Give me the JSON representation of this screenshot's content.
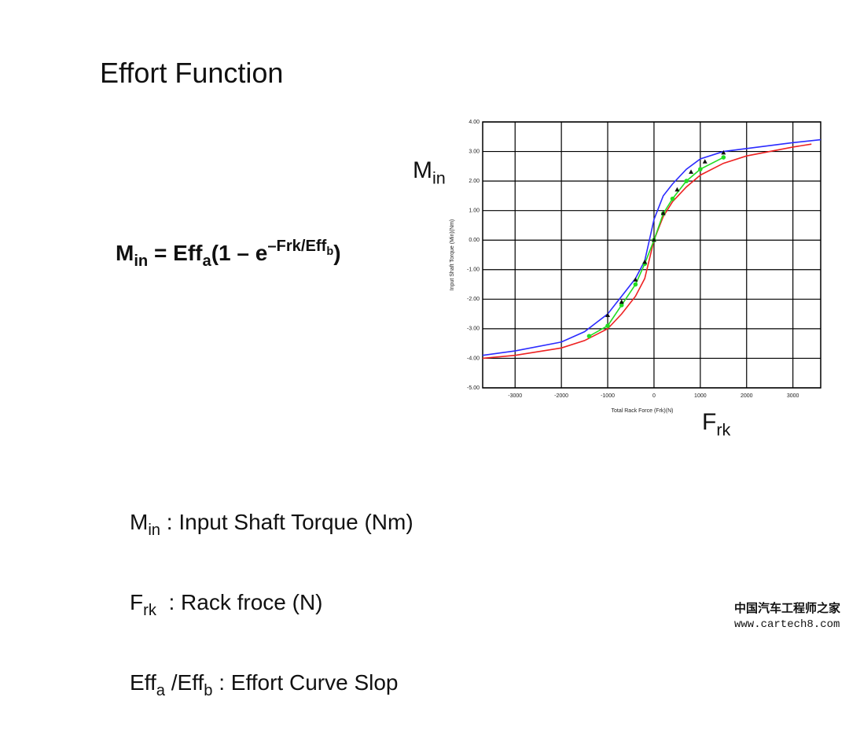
{
  "title": "Effort Function",
  "formula": {
    "lhs": "M",
    "lhs_sub": "in",
    "eq": " = Eff",
    "eff_sub": "a",
    "paren": "(1 – e",
    "exp": "–Frk/Eff",
    "exp_sub": "b",
    "close": ")"
  },
  "axis_symbols": {
    "y": {
      "text": "M",
      "sub": "in"
    },
    "x": {
      "text": "F",
      "sub": "rk"
    }
  },
  "definitions": [
    {
      "symbol": "M",
      "sub": "in",
      "text": " : Input Shaft Torque (Nm)"
    },
    {
      "symbol": "F",
      "sub": "rk",
      "text": "  : Rack froce (N)"
    },
    {
      "symbol": "Eff",
      "sub": "a",
      "symbol2": " /Eff",
      "sub2": "b",
      "text": " : Effort Curve Slop"
    }
  ],
  "watermark": [
    "中国汽车工程师之家",
    "www.cartech8.com"
  ],
  "chart_data": {
    "type": "line",
    "x_label": "Total Rack Force (Frk)(N)",
    "y_label": "Input Shaft Torque (Min)(Nm)",
    "xlim": [
      -3700,
      3600
    ],
    "ylim": [
      -5,
      4
    ],
    "xticks": [
      -3000,
      -2000,
      -1000,
      0,
      1000,
      2000,
      3000
    ],
    "yticks": [
      {
        "value": 4,
        "label": "4.00"
      },
      {
        "value": 3,
        "label": "3.00"
      },
      {
        "value": 2,
        "label": "2.00"
      },
      {
        "value": 1,
        "label": "1.00"
      },
      {
        "value": 0,
        "label": "0.00"
      },
      {
        "value": -1,
        "label": "-1.00"
      },
      {
        "value": -2,
        "label": "-2.00"
      },
      {
        "value": -3,
        "label": "-3.00"
      },
      {
        "value": -4,
        "label": "-4.00"
      },
      {
        "value": -5,
        "label": "-5.00"
      }
    ],
    "grid": true,
    "series": [
      {
        "color": "#2b2bff",
        "marker": "none",
        "x": [
          -3700,
          -3000,
          -2000,
          -1500,
          -1000,
          -700,
          -400,
          -200,
          0,
          200,
          400,
          700,
          1000,
          1500,
          2000,
          3000,
          3600
        ],
        "values": [
          -3.9,
          -3.75,
          -3.45,
          -3.1,
          -2.5,
          -1.9,
          -1.3,
          -0.7,
          0.7,
          1.5,
          1.9,
          2.4,
          2.75,
          3.0,
          3.1,
          3.3,
          3.4
        ]
      },
      {
        "color": "#ee2222",
        "marker": "none",
        "x": [
          -3700,
          -3000,
          -2000,
          -1500,
          -1000,
          -700,
          -400,
          -200,
          0,
          200,
          400,
          700,
          1000,
          1500,
          2000,
          3000,
          3400
        ],
        "values": [
          -4.0,
          -3.9,
          -3.65,
          -3.4,
          -3.0,
          -2.5,
          -1.9,
          -1.3,
          0.0,
          0.8,
          1.3,
          1.8,
          2.2,
          2.6,
          2.85,
          3.15,
          3.25
        ]
      },
      {
        "color": "#22dd22",
        "marker": "circle",
        "x": [
          -1400,
          -1000,
          -700,
          -400,
          -200,
          0,
          200,
          400,
          700,
          1000,
          1500
        ],
        "values": [
          -3.25,
          -2.9,
          -2.2,
          -1.5,
          -0.8,
          0.0,
          0.9,
          1.4,
          2.0,
          2.4,
          2.8
        ]
      },
      {
        "color": "#111111",
        "marker": "triangle",
        "x": [
          -1000,
          -700,
          -400,
          -200,
          0,
          200,
          500,
          800,
          1100,
          1500
        ],
        "values": [
          -2.55,
          -2.1,
          -1.35,
          -0.75,
          0.0,
          0.9,
          1.7,
          2.3,
          2.65,
          2.95
        ]
      }
    ]
  }
}
